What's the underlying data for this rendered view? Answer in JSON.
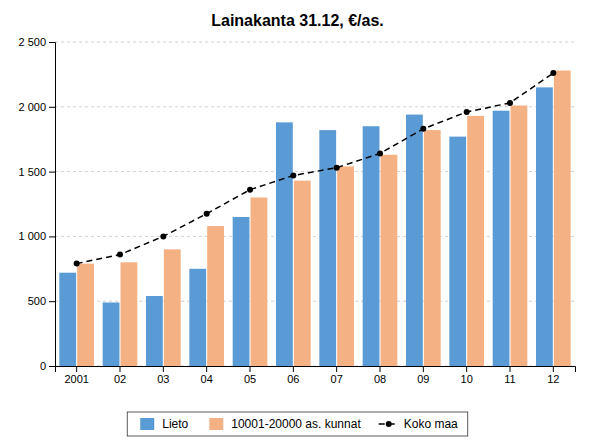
{
  "chart_data": {
    "type": "bar",
    "title": "Lainakanta 31.12, €/as.",
    "categories": [
      "2001",
      "02",
      "03",
      "04",
      "05",
      "06",
      "07",
      "08",
      "09",
      "10",
      "11",
      "12"
    ],
    "series": [
      {
        "name": "Lieto",
        "type": "bar",
        "color": "#5B9BD5",
        "values": [
          720,
          490,
          540,
          750,
          1150,
          1880,
          1820,
          1850,
          1940,
          1770,
          1970,
          2150
        ]
      },
      {
        "name": "10001-20000 as. kunnat",
        "type": "bar",
        "color": "#F4B183",
        "values": [
          790,
          800,
          900,
          1080,
          1300,
          1430,
          1540,
          1630,
          1820,
          1930,
          2010,
          2280
        ]
      },
      {
        "name": "Koko maa",
        "type": "line",
        "color": "#000000",
        "marker": "circle",
        "line_style": "dashed",
        "values": [
          790,
          860,
          1000,
          1175,
          1360,
          1470,
          1530,
          1640,
          1830,
          1960,
          2030,
          2260
        ]
      }
    ],
    "ylim": [
      0,
      2500
    ],
    "yticks": [
      0,
      500,
      {
        "value": 1000,
        "label": "1 000"
      },
      {
        "value": 1500,
        "label": "1 500"
      },
      {
        "value": 2000,
        "label": "2 000"
      },
      {
        "value": 2500,
        "label": "2 500"
      }
    ],
    "grid": true,
    "legend": "bottom"
  }
}
